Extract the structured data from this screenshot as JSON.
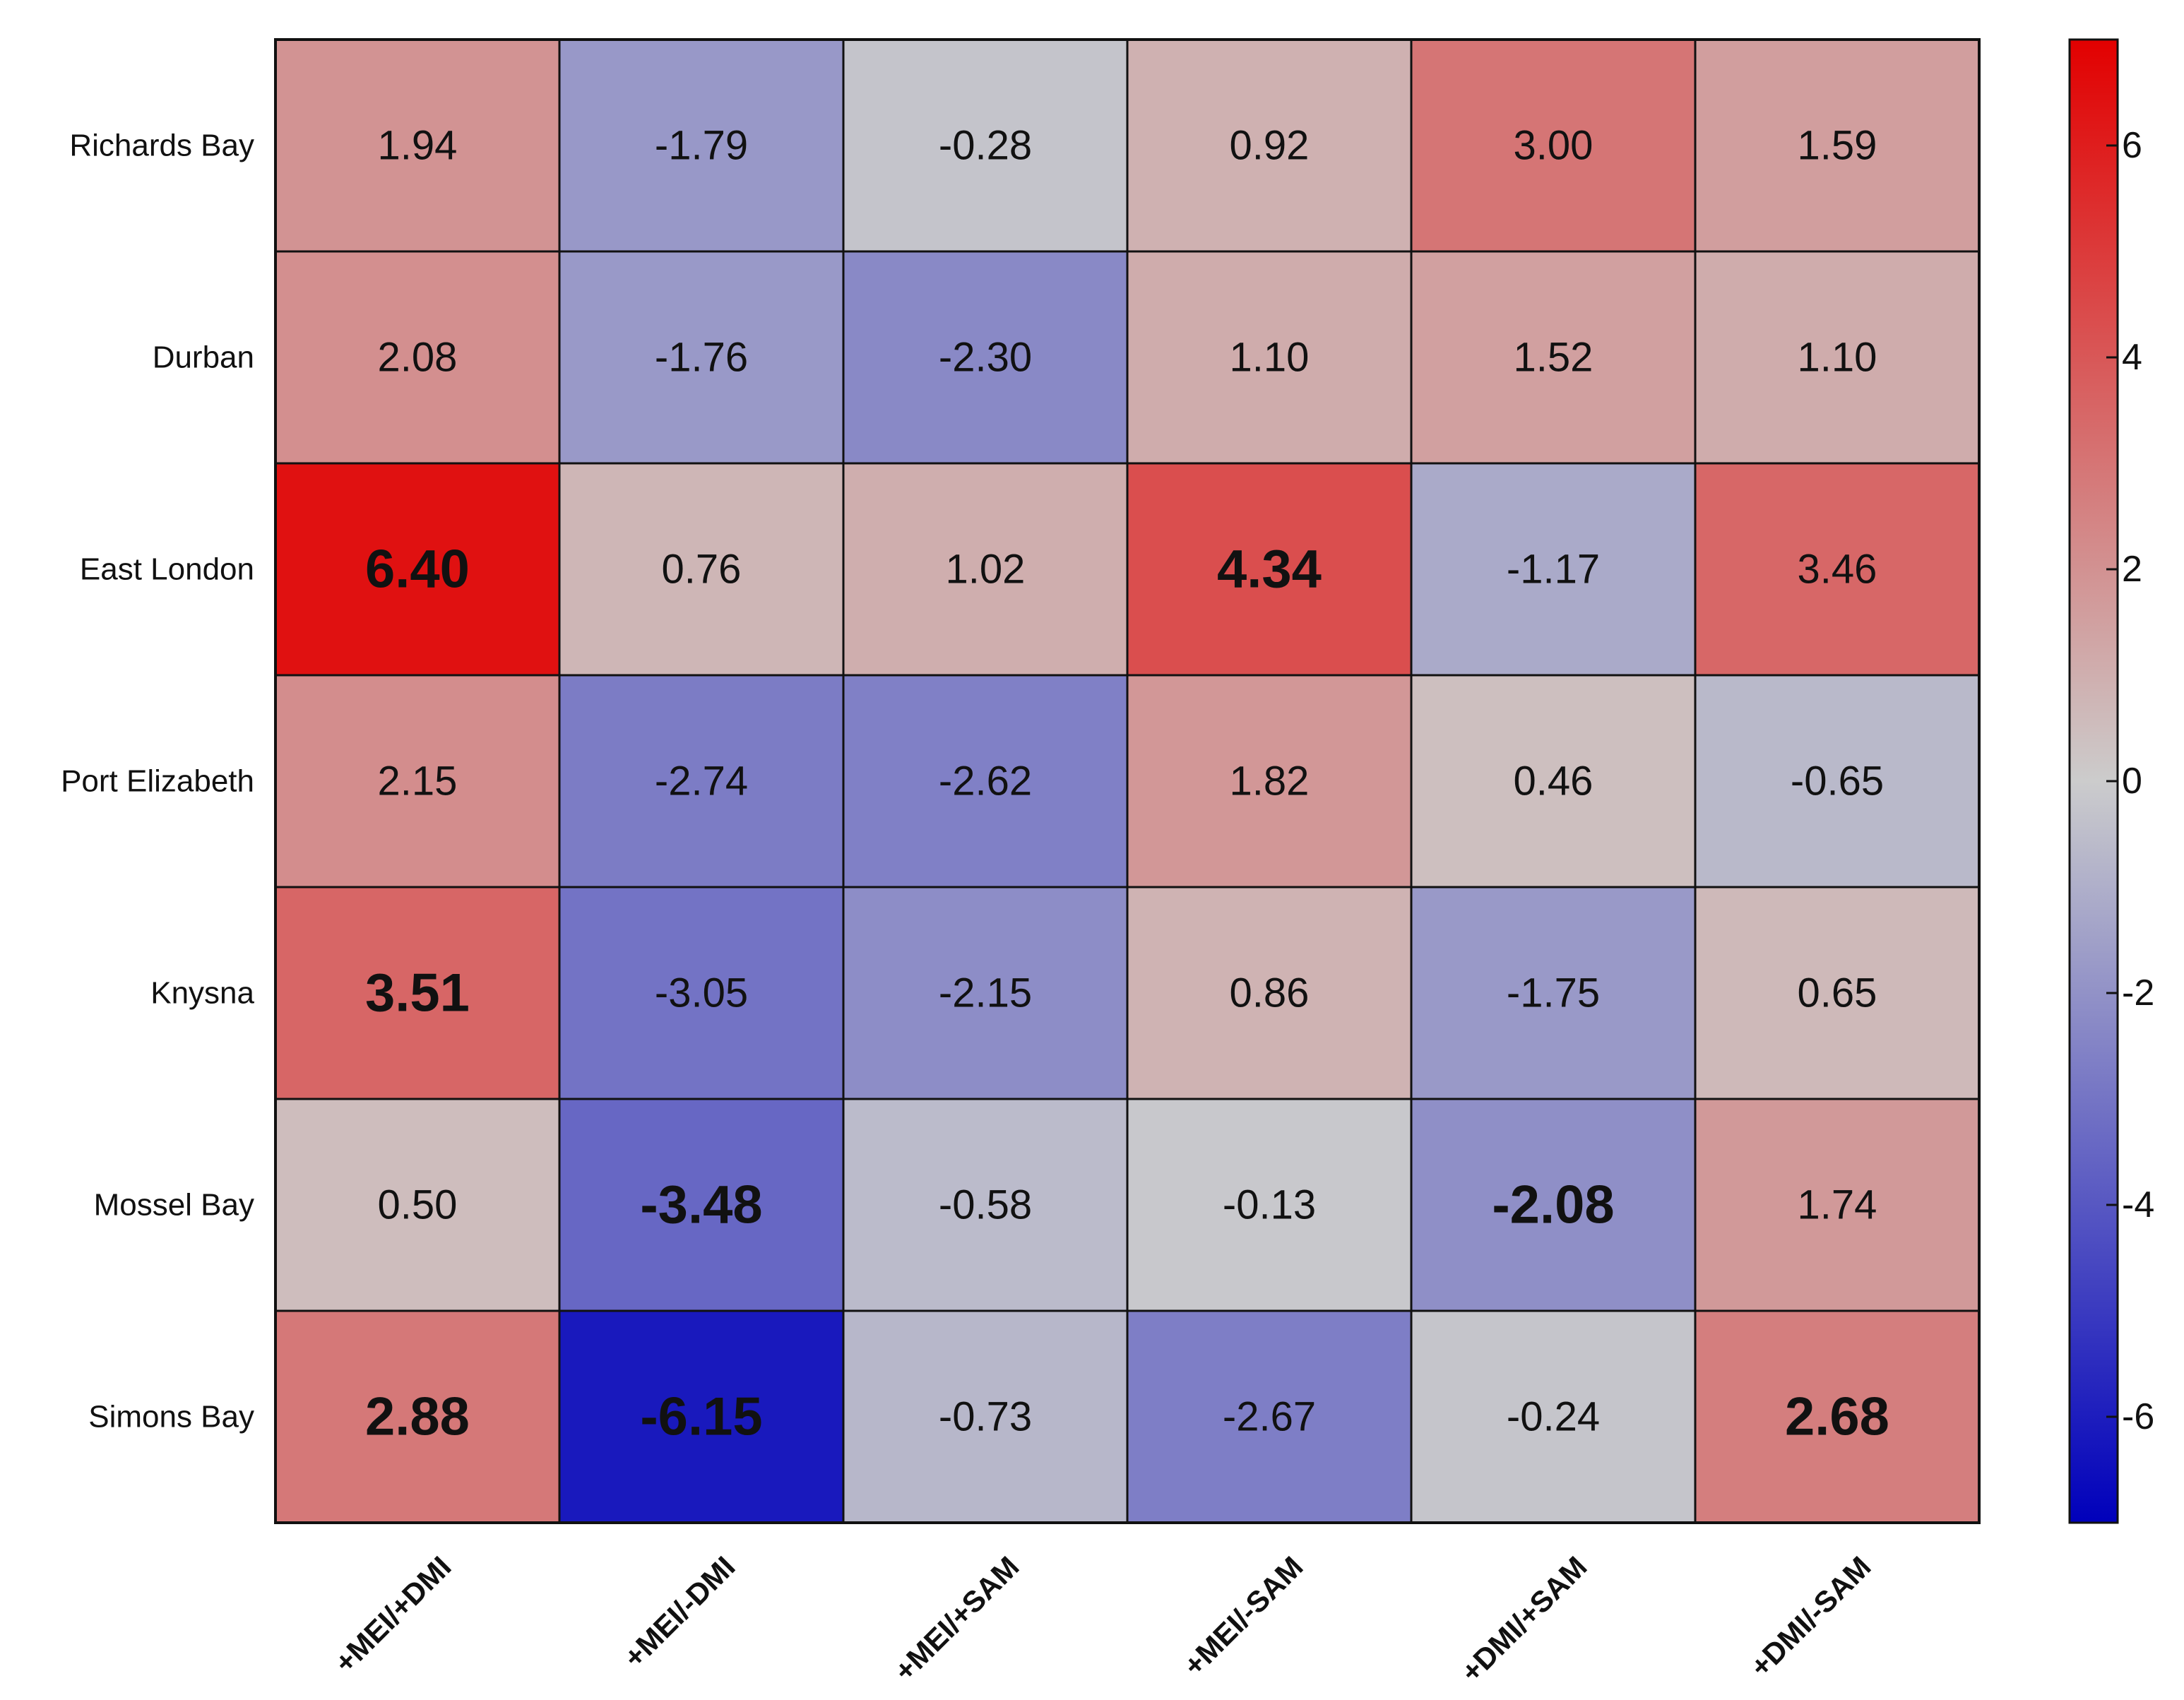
{
  "chart_data": {
    "type": "heatmap",
    "rows": [
      "Richards Bay",
      "Durban",
      "East London",
      "Port Elizabeth",
      "Knysna",
      "Mossel Bay",
      "Simons Bay"
    ],
    "columns": [
      "+MEI/+DMI",
      "+MEI/-DMI",
      "+MEI/+SAM",
      "+MEI/-SAM",
      "+DMI/+SAM",
      "+DMI/-SAM"
    ],
    "values": [
      [
        1.94,
        -1.79,
        -0.28,
        0.92,
        3.0,
        1.59
      ],
      [
        2.08,
        -1.76,
        -2.3,
        1.1,
        1.52,
        1.1
      ],
      [
        6.4,
        0.76,
        1.02,
        4.34,
        -1.17,
        3.46
      ],
      [
        2.15,
        -2.74,
        -2.62,
        1.82,
        0.46,
        -0.65
      ],
      [
        3.51,
        -3.05,
        -2.15,
        0.86,
        -1.75,
        0.65
      ],
      [
        0.5,
        -3.48,
        -0.58,
        -0.13,
        -2.08,
        1.74
      ],
      [
        2.88,
        -6.15,
        -0.73,
        -2.67,
        -0.24,
        2.68
      ]
    ],
    "labels": [
      [
        "1.94",
        "-1.79",
        "-0.28",
        "0.92",
        "3.00",
        "1.59"
      ],
      [
        "2.08",
        "-1.76",
        "-2.30",
        "1.10",
        "1.52",
        "1.10"
      ],
      [
        "6.40",
        "0.76",
        "1.02",
        "4.34",
        "-1.17",
        "3.46"
      ],
      [
        "2.15",
        "-2.74",
        "-2.62",
        "1.82",
        "0.46",
        "-0.65"
      ],
      [
        "3.51",
        "-3.05",
        "-2.15",
        "0.86",
        "-1.75",
        "0.65"
      ],
      [
        "0.50",
        "-3.48",
        "-0.58",
        "-0.13",
        "-2.08",
        "1.74"
      ],
      [
        "2.88",
        "-6.15",
        "-0.73",
        "-2.67",
        "-0.24",
        "2.68"
      ]
    ],
    "bold": [
      [
        false,
        false,
        false,
        false,
        false,
        false
      ],
      [
        false,
        false,
        false,
        false,
        false,
        false
      ],
      [
        true,
        false,
        false,
        true,
        false,
        false
      ],
      [
        false,
        false,
        false,
        false,
        false,
        false
      ],
      [
        true,
        false,
        false,
        false,
        false,
        false
      ],
      [
        false,
        true,
        false,
        false,
        true,
        false
      ],
      [
        true,
        true,
        false,
        false,
        false,
        true
      ]
    ],
    "colorbar": {
      "range": [
        -7,
        7
      ],
      "ticks": [
        6,
        4,
        2,
        0,
        -2,
        -4,
        -6
      ],
      "tick_labels": [
        "6",
        "4",
        "2",
        "0",
        "-2",
        "-4",
        "-6"
      ],
      "colors": {
        "negative": "#0000bb",
        "neutral": "#cccccc",
        "positive": "#e20000"
      }
    },
    "grid": true,
    "legend": "right"
  }
}
